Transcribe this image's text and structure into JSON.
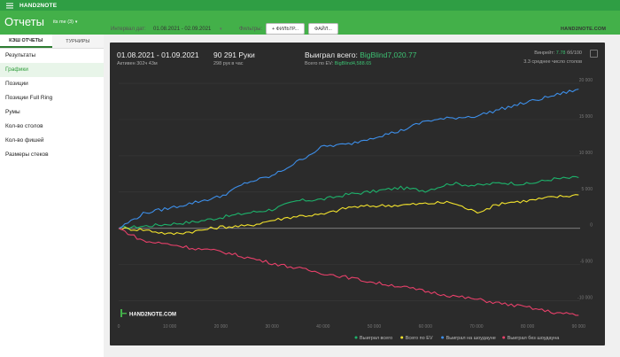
{
  "app": {
    "brand": "HAND2NOTE"
  },
  "header": {
    "title": "Отчеты",
    "profile": "its me (3)"
  },
  "sidebar": {
    "tabs": [
      {
        "label": "КЭШ ОТЧЕТЫ"
      },
      {
        "label": "ТУРНИРЫ"
      }
    ],
    "items": [
      {
        "label": "Результаты"
      },
      {
        "label": "Графики"
      },
      {
        "label": "Позиции"
      },
      {
        "label": "Позиции Full Ring"
      },
      {
        "label": "Румы"
      },
      {
        "label": "Кол-во столов"
      },
      {
        "label": "Кол-во фишей"
      },
      {
        "label": "Размеры стеков"
      }
    ],
    "active_index": 1
  },
  "toolbar": {
    "interval_label": "Интервал дат:",
    "interval_value": "01.08.2021 - 02.09.2021",
    "filters_label": "Фильтры:",
    "filter_button": "+ ФИЛЬТР...",
    "file_button": "ФАЙЛ..."
  },
  "logo": {
    "text": "HAND2NOTE.COM"
  },
  "summary": {
    "period": "01.08.2021 - 01.09.2021",
    "active": "Активен 302ч 43м",
    "hands": "90 291 Руки",
    "hands_per_hour": "298 рук в час",
    "won_label": "Выиграл всего:",
    "won_value": "BigBlind7,020.77",
    "ev_label": "Всего по EV:",
    "ev_value": "BigBlind4,588.65",
    "winrate_label": "Винрейт:",
    "winrate_value": "7.78",
    "winrate_unit": "бб/100",
    "avg_tables": "3.3 среднее число столов"
  },
  "colors": {
    "total": "#1db26b",
    "ev": "#f2e22c",
    "showdown": "#3d8ee8",
    "nonshowdown": "#e8406a"
  },
  "chart_data": {
    "type": "line",
    "watermark": "HAND2NOTE.COM",
    "x_ticks": [
      0,
      10000,
      20000,
      30000,
      40000,
      50000,
      60000,
      70000,
      80000,
      90000
    ],
    "x_tick_labels": [
      "0",
      "10 000",
      "20 000",
      "30 000",
      "40 000",
      "50 000",
      "60 000",
      "70 000",
      "80 000",
      "90 000"
    ],
    "y_ticks": [
      20000,
      15000,
      10000,
      5000,
      0,
      -5000,
      -10000
    ],
    "y_tick_labels": [
      "20 000",
      "15 000",
      "10 000",
      "5 000",
      "0",
      "-5 000",
      "-10 000"
    ],
    "xlim": [
      0,
      90291
    ],
    "ylim": [
      -12500,
      20500
    ],
    "x": [
      0,
      5000,
      10000,
      15000,
      20000,
      25000,
      30000,
      35000,
      40000,
      45000,
      50000,
      55000,
      60000,
      65000,
      70000,
      75000,
      80000,
      85000,
      90000
    ],
    "series": [
      {
        "name": "Выиграл всего",
        "color_key": "total",
        "values": [
          0,
          300,
          600,
          900,
          1500,
          2100,
          2600,
          3800,
          4000,
          4700,
          5100,
          5600,
          5200,
          6200,
          5900,
          6300,
          6100,
          6800,
          7000
        ]
      },
      {
        "name": "Всего по EV",
        "color_key": "ev",
        "values": [
          0,
          -200,
          -800,
          -400,
          200,
          300,
          1100,
          1700,
          1900,
          2900,
          3100,
          3200,
          3400,
          3600,
          2200,
          3500,
          3800,
          4300,
          4600
        ]
      },
      {
        "name": "Выиграл на шоудауне",
        "color_key": "showdown",
        "values": [
          0,
          2100,
          2800,
          3600,
          4400,
          6300,
          7200,
          9200,
          11300,
          11600,
          12600,
          13400,
          14800,
          15200,
          15500,
          16500,
          17400,
          18300,
          19200
        ]
      },
      {
        "name": "Выиграл без шоудауна",
        "color_key": "nonshowdown",
        "values": [
          0,
          -1800,
          -2200,
          -2800,
          -3200,
          -4000,
          -4800,
          -5500,
          -6200,
          -6800,
          -7500,
          -8000,
          -8700,
          -9300,
          -9800,
          -10400,
          -10900,
          -11600,
          -12000
        ]
      }
    ]
  }
}
